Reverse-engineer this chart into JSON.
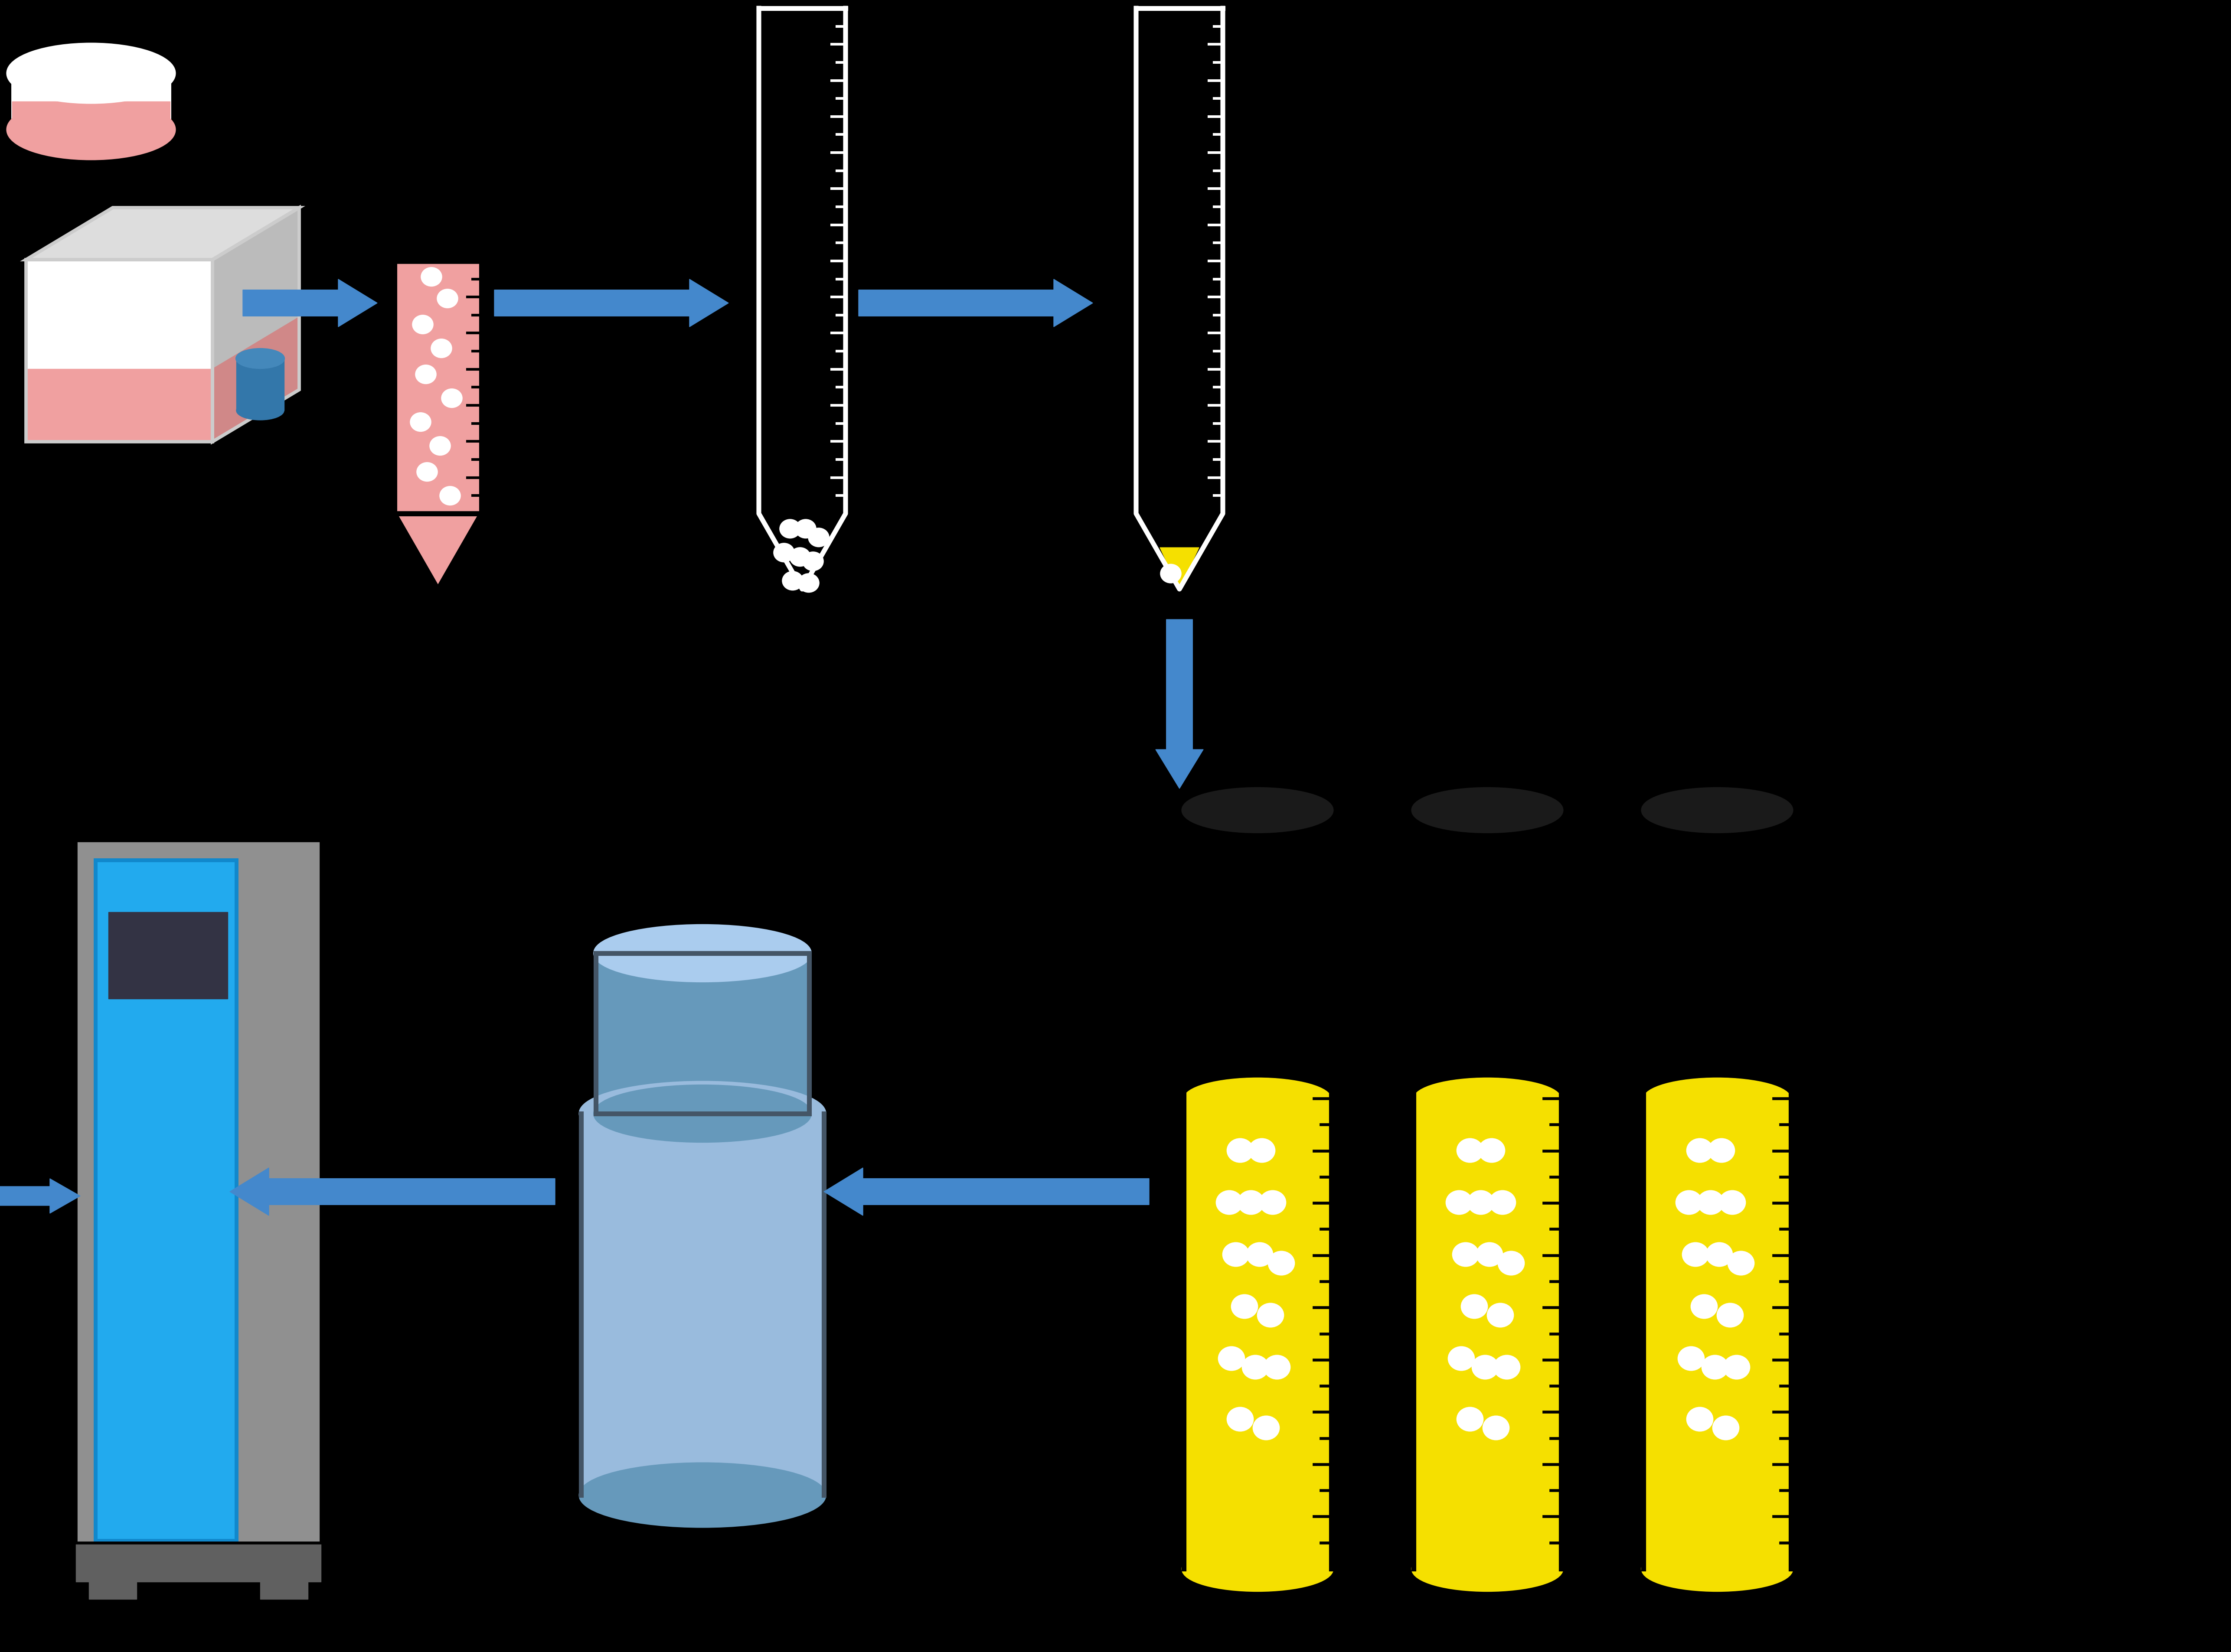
{
  "bg": "#000000",
  "pink": "#F0A0A0",
  "pink_dark": "#D08888",
  "blue_arr": "#4488CC",
  "yellow": "#F5E000",
  "yellow_dark": "#D4C000",
  "gray_frz": "#909090",
  "gray_frz_dark": "#777777",
  "gray_frz_base": "#606060",
  "blue_frz": "#22AAEE",
  "blue_frz_outline": "#1188CC",
  "frz_window": "#333344",
  "cryo_body": "#99BBDD",
  "cryo_lid": "#6699BB",
  "cryo_lid_top": "#AACCEE",
  "cryo_outline": "#445566",
  "white": "#FFFFFF",
  "black": "#000000",
  "tube_black": "#111111",
  "flask_gray": "#BBBBBB",
  "flask_gray2": "#CCCCCC",
  "flask_gray3": "#DDDDDD",
  "flask_cap": "#3377AA",
  "flask_cap2": "#4488BB"
}
